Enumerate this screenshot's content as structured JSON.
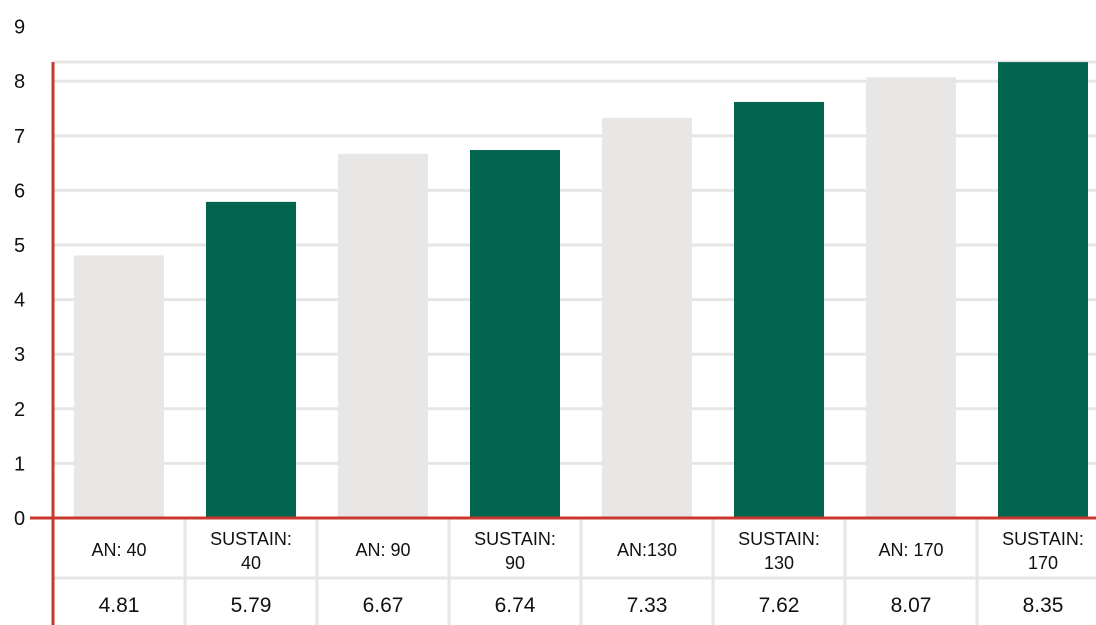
{
  "chart_data": {
    "type": "bar",
    "title": "",
    "categories": [
      "AN: 40",
      "SUSTAIN: 40",
      "AN: 90",
      "SUSTAIN: 90",
      "AN:130",
      "SUSTAIN: 130",
      "AN: 170",
      "SUSTAIN: 170"
    ],
    "values": [
      4.81,
      5.79,
      6.67,
      6.74,
      7.33,
      7.62,
      8.07,
      8.35
    ],
    "value_labels": [
      "4.81",
      "5.79",
      "6.67",
      "6.74",
      "7.33",
      "7.62",
      "8.07",
      "8.35"
    ],
    "ylim": [
      0,
      9
    ],
    "yticks": [
      "0",
      "1",
      "2",
      "3",
      "4",
      "5",
      "6",
      "7",
      "8",
      "9"
    ],
    "grid": true,
    "legend": "none",
    "colors": {
      "an": "#e8e7e5",
      "sustain": "#036450",
      "axis": "#c8382e",
      "grid": "#e6e6e6",
      "title": "#7ab023",
      "text": "#111111"
    }
  }
}
